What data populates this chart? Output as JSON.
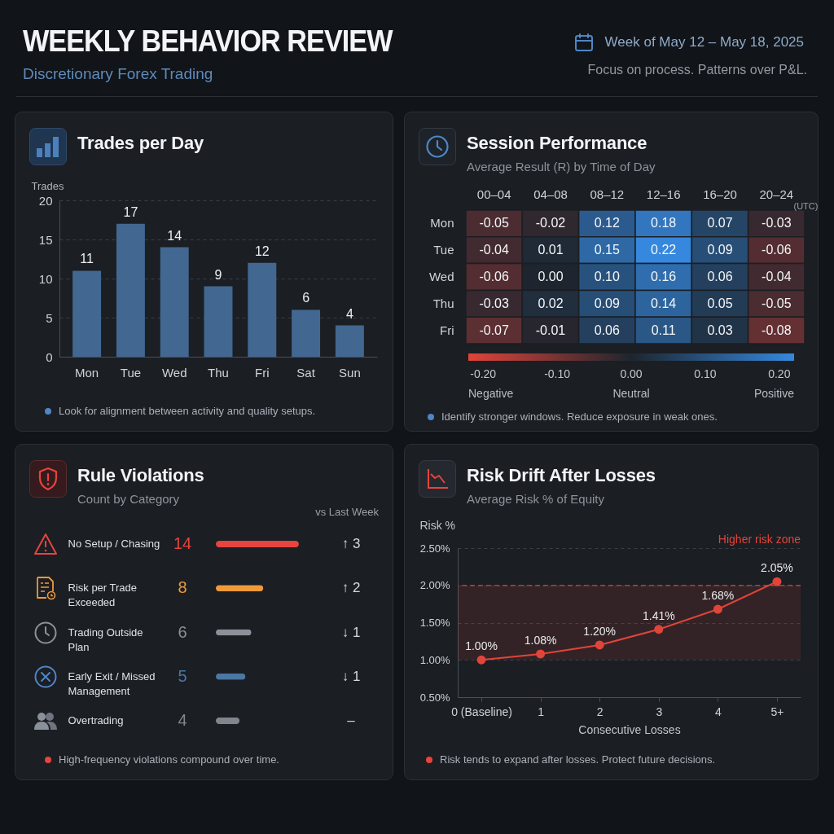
{
  "chart_data": [
    {
      "type": "other",
      "title": "WEEKLY BEHAVIOR REVIEW",
      "subtitle": "Discretionary Forex Trading",
      "annotations": [
        "Week of May 12 – May 18, 2025",
        "Focus on process. Patterns over P&L."
      ]
    },
    {
      "type": "bar",
      "title": "Trades per Day",
      "ylabel": "Trades",
      "categories": [
        "Mon",
        "Tue",
        "Wed",
        "Thu",
        "Fri",
        "Sat",
        "Sun"
      ],
      "values": [
        11,
        17,
        14,
        9,
        12,
        6,
        4
      ],
      "color": "#426891",
      "data_labels": true,
      "ylim": [
        0,
        20
      ],
      "yticks": [
        0,
        5,
        10,
        15,
        20
      ],
      "grid": "y",
      "annotations": [
        "Look for alignment between activity and quality setups."
      ]
    },
    {
      "type": "heatmap",
      "title": "Session Performance",
      "subtitle": "Average Result (R) by Time of Day",
      "xlabel": "(UTC)",
      "categories": [
        "00–04",
        "04–08",
        "08–12",
        "12–16",
        "16–20",
        "20–24"
      ],
      "y_categories": [
        "Mon",
        "Tue",
        "Wed",
        "Thu",
        "Fri"
      ],
      "cells": [
        [
          -0.05,
          -0.02,
          0.12,
          0.18,
          0.07,
          -0.03
        ],
        [
          -0.04,
          0.01,
          0.15,
          0.22,
          0.09,
          -0.06
        ],
        [
          -0.06,
          0,
          0.1,
          0.16,
          0.06,
          -0.04
        ],
        [
          -0.03,
          0.02,
          0.09,
          0.14,
          0.05,
          -0.05
        ],
        [
          -0.07,
          -0.01,
          0.06,
          0.11,
          0.03,
          -0.08
        ]
      ],
      "cell_labels": [
        [
          "-0.05",
          "-0.02",
          "0.12",
          "0.18",
          "0.07",
          "-0.03"
        ],
        [
          "-0.04",
          "0.01",
          "0.15",
          "0.22",
          "0.09",
          "-0.06"
        ],
        [
          "-0.06",
          "0.00",
          "0.10",
          "0.16",
          "0.06",
          "-0.04"
        ],
        [
          "-0.03",
          "0.02",
          "0.09",
          "0.14",
          "0.05",
          "-0.05"
        ],
        [
          "-0.07",
          "-0.01",
          "0.06",
          "0.11",
          "0.03",
          "-0.08"
        ]
      ],
      "clim": [
        -0.22,
        0.22
      ],
      "cticks": [
        {
          "value": -0.2,
          "label": "-0.20"
        },
        {
          "value": -0.1,
          "label": "-0.10"
        },
        {
          "value": 0,
          "label": "0.00"
        },
        {
          "value": 0.1,
          "label": "0.10"
        },
        {
          "value": 0.2,
          "label": "0.20"
        }
      ],
      "annotations": [
        "Negative",
        "Neutral",
        "Positive",
        "Identify stronger windows. Reduce exposure in weak ones."
      ]
    },
    {
      "type": "bar",
      "orientation": "horizontal",
      "title": "Rule Violations",
      "subtitle": "Count by Category",
      "categories": [
        "No Setup / Chasing",
        "Risk per Trade Exceeded",
        "Trading Outside Plan",
        "Early Exit / Missed Management",
        "Overtrading"
      ],
      "values": [
        14,
        8,
        6,
        5,
        4
      ],
      "colors": [
        "#e5443f",
        "#ee9a3a",
        "#8b9099",
        "#4b77a3",
        "#80858e"
      ],
      "data_labels": true,
      "xlim": [
        0,
        14
      ],
      "tick_labels": "y",
      "annotations": [
        "vs Last Week",
        "↑ 3",
        "↑ 2",
        "↓ 1",
        "↓ 1",
        "–",
        "High-frequency violations compound over time."
      ]
    },
    {
      "type": "line",
      "title": "Risk Drift After Losses",
      "subtitle": "Average Risk % of Equity",
      "xlabel": "Consecutive Losses",
      "ylabel": "Risk %",
      "categories": [
        "0 (Baseline)",
        "1",
        "2",
        "3",
        "4",
        "5+"
      ],
      "values": [
        1.0,
        1.08,
        1.2,
        1.41,
        1.68,
        2.05
      ],
      "value_labels": [
        "1.00%",
        "1.08%",
        "1.20%",
        "1.41%",
        "1.68%",
        "2.05%"
      ],
      "color": "#e0453a",
      "marker": "circle",
      "line_style": "solid",
      "ylim": [
        0.5,
        2.5
      ],
      "yticks": [
        {
          "value": 0.5,
          "label": "0.50%"
        },
        {
          "value": 1,
          "label": "1.00%"
        },
        {
          "value": 1.5,
          "label": "1.50%"
        },
        {
          "value": 2,
          "label": "2.00%"
        },
        {
          "value": 2.5,
          "label": "2.50%"
        }
      ],
      "grid": "y",
      "bands": [
        {
          "axis": "y",
          "from": 1.0,
          "to": 2.0,
          "label": "Higher risk zone",
          "color": "#e0453a"
        }
      ],
      "ref_lines": [
        {
          "axis": "y",
          "value": 2.0,
          "color": "#b83a34",
          "line_style": "dashed"
        }
      ],
      "annotations": [
        "Risk tends to expand after losses. Protect future decisions."
      ]
    }
  ]
}
